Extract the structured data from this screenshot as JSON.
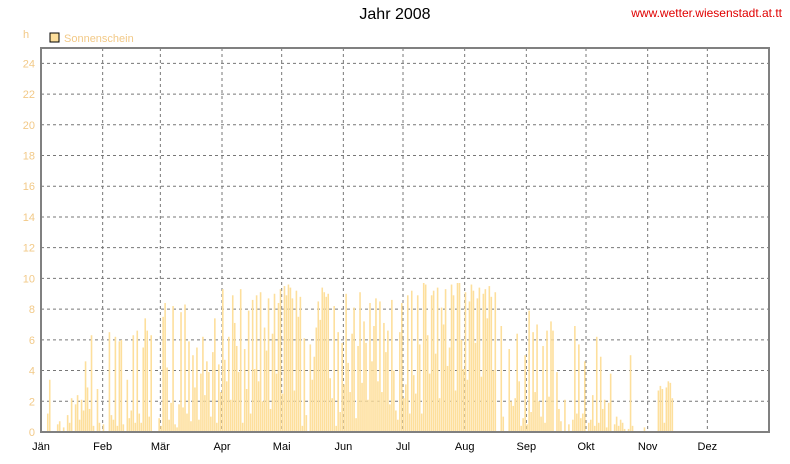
{
  "header": {
    "title": "Jahr 2008",
    "site": "www.wetter.wiesenstadt.at.tt"
  },
  "chart_data": {
    "type": "bar",
    "title": "Jahr 2008",
    "ylabel": "h",
    "ylim": [
      0,
      25
    ],
    "yticks": [
      0,
      2,
      4,
      6,
      8,
      10,
      12,
      14,
      16,
      18,
      20,
      22,
      24
    ],
    "months": [
      "Jän",
      "Feb",
      "Mär",
      "Apr",
      "Mai",
      "Jun",
      "Jul",
      "Aug",
      "Sep",
      "Okt",
      "Nov",
      "Dez"
    ],
    "grid": true,
    "legend_position": "top-left",
    "color": "#fddf9c",
    "series": [
      {
        "name": "Sonnenschein",
        "x_start": "2008-01-01",
        "x_step": "1 day",
        "values": [
          0,
          0,
          0,
          1.2,
          3.4,
          0,
          0,
          0,
          0.5,
          0.7,
          0,
          0.3,
          0,
          1.1,
          0.6,
          2.2,
          0,
          1.8,
          2.4,
          0.8,
          2.1,
          1.4,
          4.6,
          2.9,
          1.5,
          6.3,
          0.4,
          0,
          2.8,
          0.6,
          0,
          0.5,
          0,
          0,
          6.5,
          1.1,
          0.8,
          6.2,
          0.4,
          5.9,
          6.0,
          0.5,
          0,
          3.4,
          0.9,
          1.4,
          6.3,
          0.6,
          6.6,
          1.2,
          0.6,
          5.5,
          7.4,
          6.6,
          1.0,
          6.3,
          0,
          0,
          0,
          0.9,
          0.4,
          7.5,
          8.4,
          4.2,
          0.8,
          1.9,
          8.2,
          0.5,
          0.3,
          1.8,
          7.8,
          1.6,
          8.3,
          1.2,
          5.9,
          0.7,
          5.0,
          2.9,
          5.5,
          0.8,
          3.8,
          6.2,
          2.4,
          4.6,
          3.9,
          1.0,
          5.2,
          7.4,
          0.6,
          4.4,
          2.6,
          9.3,
          4.7,
          3.3,
          6.2,
          2.1,
          8.9,
          7.1,
          5.6,
          3.9,
          9.3,
          0.6,
          5.4,
          2.8,
          7.9,
          1.2,
          8.6,
          4.1,
          8.9,
          3.3,
          9.1,
          2.0,
          6.8,
          5.3,
          8.7,
          1.5,
          6.4,
          9.0,
          3.8,
          8.4,
          9.3,
          2.5,
          9.5,
          8.9,
          9.6,
          9.4,
          8.7,
          2.7,
          9.2,
          7.5,
          8.8,
          0.4,
          6.1,
          1.1,
          0,
          5.7,
          3.4,
          4.9,
          6.8,
          8.5,
          7.3,
          9.4,
          9.1,
          8.8,
          9.0,
          3.5,
          2.2,
          8.2,
          0.4,
          6.5,
          1.3,
          5.8,
          3.1,
          9.0,
          4.5,
          2.6,
          6.4,
          8.1,
          0.9,
          5.6,
          9.1,
          3.2,
          7.2,
          5.8,
          2.1,
          8.4,
          4.6,
          6.9,
          8.7,
          3.3,
          8.5,
          2.6,
          7.1,
          5.2,
          6.6,
          1.8,
          8.6,
          4.0,
          1.4,
          0.8,
          6.5,
          8.4,
          2.2,
          3.1,
          8.9,
          1.2,
          9.2,
          3.7,
          2.5,
          8.9,
          5.7,
          1.2,
          9.7,
          9.6,
          6.3,
          3.8,
          8.9,
          9.2,
          5.1,
          9.4,
          2.2,
          8.1,
          7.0,
          9.3,
          4.3,
          5.5,
          9.6,
          8.9,
          2.7,
          9.7,
          9.7,
          6.0,
          4.1,
          9.1,
          3.4,
          8.5,
          9.6,
          9.2,
          5.8,
          8.7,
          9.4,
          3.6,
          9.0,
          9.3,
          7.4,
          9.5,
          8.8,
          4.0,
          9.1,
          0,
          0,
          6.9,
          1.0,
          0,
          0,
          5.4,
          2.0,
          1.7,
          2.2,
          6.4,
          3.3,
          0.4,
          0.9,
          5.0,
          0.5,
          7.9,
          1.3,
          6.5,
          2.6,
          7.0,
          2.0,
          1.0,
          5.6,
          0.6,
          6.6,
          2.3,
          7.2,
          6.6,
          0,
          3.9,
          1.5,
          0.7,
          0,
          2.1,
          0,
          0.5,
          0,
          0.8,
          6.9,
          1.2,
          5.7,
          0.9,
          1.2,
          4.6,
          0,
          0.6,
          0.8,
          2.4,
          0.4,
          6.2,
          0.6,
          4.9,
          1.5,
          2.1,
          0.3,
          1.9,
          3.8,
          0,
          0.5,
          1.0,
          0.4,
          0.8,
          0.6,
          0.2,
          0,
          0.2,
          5.0,
          0.4,
          0,
          0,
          0,
          0,
          0,
          0.3,
          0,
          0,
          0,
          0,
          0,
          0,
          2.7,
          3.0,
          2.8,
          0.6,
          2.9,
          3.3,
          3.2,
          2.2,
          0,
          0,
          0
        ]
      }
    ]
  }
}
